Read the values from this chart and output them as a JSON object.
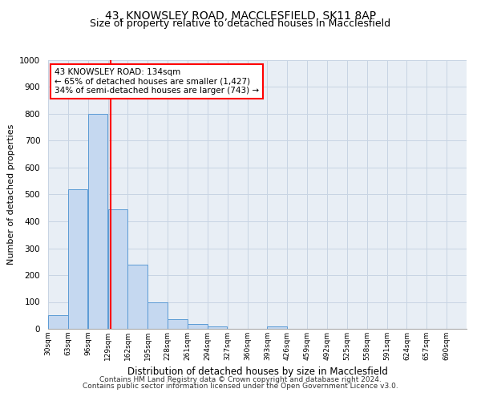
{
  "title1": "43, KNOWSLEY ROAD, MACCLESFIELD, SK11 8AP",
  "title2": "Size of property relative to detached houses in Macclesfield",
  "xlabel": "Distribution of detached houses by size in Macclesfield",
  "ylabel": "Number of detached properties",
  "footer1": "Contains HM Land Registry data © Crown copyright and database right 2024.",
  "footer2": "Contains public sector information licensed under the Open Government Licence v3.0.",
  "bar_values": [
    50,
    520,
    800,
    445,
    240,
    100,
    35,
    18,
    8,
    0,
    0,
    8,
    0,
    0,
    0,
    0,
    0,
    0,
    0,
    0,
    0
  ],
  "bin_edges": [
    30,
    63,
    96,
    129,
    162,
    195,
    228,
    261,
    294,
    327,
    360,
    393,
    426,
    459,
    492,
    525,
    558,
    591,
    624,
    657,
    690
  ],
  "tick_labels": [
    "30sqm",
    "63sqm",
    "96sqm",
    "129sqm",
    "162sqm",
    "195sqm",
    "228sqm",
    "261sqm",
    "294sqm",
    "327sqm",
    "360sqm",
    "393sqm",
    "426sqm",
    "459sqm",
    "492sqm",
    "525sqm",
    "558sqm",
    "591sqm",
    "624sqm",
    "657sqm",
    "690sqm"
  ],
  "bar_color": "#c5d8f0",
  "bar_edge_color": "#5b9bd5",
  "red_line_x": 134,
  "ylim": [
    0,
    1000
  ],
  "yticks": [
    0,
    100,
    200,
    300,
    400,
    500,
    600,
    700,
    800,
    900,
    1000
  ],
  "annotation_title": "43 KNOWSLEY ROAD: 134sqm",
  "annotation_line1": "← 65% of detached houses are smaller (1,427)",
  "annotation_line2": "34% of semi-detached houses are larger (743) →",
  "grid_color": "#c8d4e3",
  "background_color": "#e8eef5",
  "title1_fontsize": 10,
  "title2_fontsize": 9,
  "xlabel_fontsize": 8.5,
  "ylabel_fontsize": 8,
  "footer_fontsize": 6.5,
  "annotation_fontsize": 7.5
}
